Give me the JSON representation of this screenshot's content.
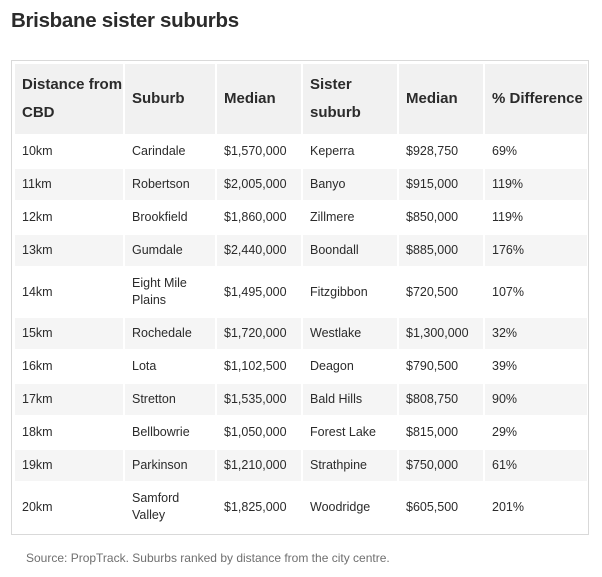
{
  "title": "Brisbane sister suburbs",
  "table": {
    "headers": [
      "Distance from CBD",
      "Suburb",
      "Median",
      "Sister suburb",
      "Median",
      "% Difference"
    ],
    "rows": [
      [
        "10km",
        "Carindale",
        "$1,570,000",
        "Keperra",
        "$928,750",
        "69%"
      ],
      [
        "11km",
        "Robertson",
        "$2,005,000",
        "Banyo",
        "$915,000",
        "119%"
      ],
      [
        "12km",
        "Brookfield",
        "$1,860,000",
        "Zillmere",
        "$850,000",
        "119%"
      ],
      [
        "13km",
        "Gumdale",
        "$2,440,000",
        "Boondall",
        "$885,000",
        "176%"
      ],
      [
        "14km",
        "Eight Mile Plains",
        "$1,495,000",
        "Fitzgibbon",
        "$720,500",
        "107%"
      ],
      [
        "15km",
        "Rochedale",
        "$1,720,000",
        "Westlake",
        "$1,300,000",
        "32%"
      ],
      [
        "16km",
        "Lota",
        "$1,102,500",
        "Deagon",
        "$790,500",
        "39%"
      ],
      [
        "17km",
        "Stretton",
        "$1,535,000",
        "Bald Hills",
        "$808,750",
        "90%"
      ],
      [
        "18km",
        "Bellbowrie",
        "$1,050,000",
        "Forest Lake",
        "$815,000",
        "29%"
      ],
      [
        "19km",
        "Parkinson",
        "$1,210,000",
        "Strathpine",
        "$750,000",
        "61%"
      ],
      [
        "20km",
        "Samford Valley",
        "$1,825,000",
        "Woodridge",
        "$605,500",
        "201%"
      ]
    ]
  },
  "caption": "Source: PropTrack. Suburbs ranked by distance from the city centre."
}
